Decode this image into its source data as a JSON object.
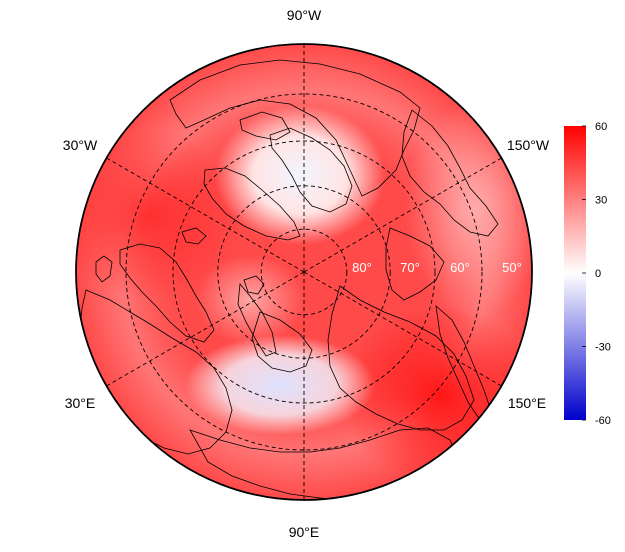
{
  "map": {
    "projection": "north polar stereographic",
    "longitude_labels": [
      {
        "text": "90°W",
        "lon": -90
      },
      {
        "text": "30°W",
        "lon": -30
      },
      {
        "text": "150°W",
        "lon": -150
      },
      {
        "text": "30°E",
        "lon": 30
      },
      {
        "text": "150°E",
        "lon": 150
      },
      {
        "text": "90°E",
        "lon": 90
      }
    ],
    "latitude_labels": [
      {
        "text": "80°",
        "lat": 80
      },
      {
        "text": "70°",
        "lat": 70
      },
      {
        "text": "60°",
        "lat": 60
      },
      {
        "text": "50°",
        "lat": 50
      }
    ],
    "graticule": {
      "latitudes": [
        50,
        60,
        70,
        80
      ],
      "longitudes": [
        -150,
        -90,
        -30,
        30,
        90,
        150
      ],
      "style": "dashed"
    },
    "boundary_latitude": 40,
    "colors": {
      "positive": "#ff0000",
      "zero": "#ffffff",
      "negative": "#0000cc"
    }
  },
  "colorbar": {
    "range": [
      -60,
      60
    ],
    "ticks": [
      {
        "text": "60",
        "value": 60
      },
      {
        "text": "30",
        "value": 30
      },
      {
        "text": "0",
        "value": 0
      },
      {
        "text": "-30",
        "value": -30
      },
      {
        "text": "-60",
        "value": -60
      }
    ]
  }
}
